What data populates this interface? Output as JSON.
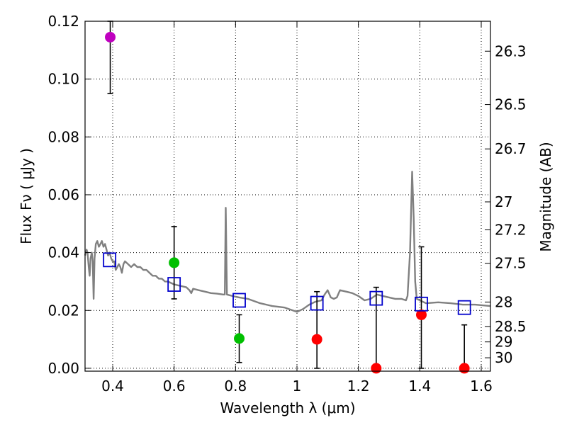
{
  "chart_data": {
    "type": "scatter",
    "xlabel": "Wavelength  λ (μm)",
    "ylabel": "Flux  Fν  ( μJy )",
    "ylabel_right": "Magnitude (AB)",
    "xlim": [
      0.31,
      1.63
    ],
    "ylim": [
      -0.001,
      0.12
    ],
    "grid": true,
    "x_ticks": [
      0.4,
      0.6,
      0.8,
      1.0,
      1.2,
      1.4,
      1.6
    ],
    "x_tick_labels": [
      "0.4",
      "0.6",
      "0.8",
      "1",
      "1.2",
      "1.4",
      "1.6"
    ],
    "y_ticks": [
      0.0,
      0.02,
      0.04,
      0.06,
      0.08,
      0.1,
      0.12
    ],
    "y_tick_labels": [
      "0.00",
      "0.02",
      "0.04",
      "0.06",
      "0.08",
      "0.10",
      "0.12"
    ],
    "right_ticks": [
      {
        "label": "26.3",
        "mag": 26.3
      },
      {
        "label": "26.5",
        "mag": 26.5
      },
      {
        "label": "26.7",
        "mag": 26.7
      },
      {
        "label": "27",
        "mag": 27.0
      },
      {
        "label": "27.2",
        "mag": 27.2
      },
      {
        "label": "27.5",
        "mag": 27.5
      },
      {
        "label": "28",
        "mag": 28.0
      },
      {
        "label": "28.5",
        "mag": 28.5
      },
      {
        "label": "29",
        "mag": 29.0
      },
      {
        "label": "30",
        "mag": 30.0
      }
    ],
    "observations": [
      {
        "x": 0.392,
        "y": 0.1145,
        "err_low": 0.095,
        "err_high": 0.12,
        "color": "#bf00bf"
      },
      {
        "x": 0.6,
        "y": 0.0365,
        "err_low": 0.024,
        "err_high": 0.049,
        "color": "#00bf00"
      },
      {
        "x": 0.812,
        "y": 0.0103,
        "err_low": 0.002,
        "err_high": 0.0185,
        "color": "#00bf00"
      },
      {
        "x": 1.065,
        "y": 0.01,
        "err_low": 0.0,
        "err_high": 0.0265,
        "color": "#ff0000"
      },
      {
        "x": 1.258,
        "y": 0.0,
        "err_low": 0.0,
        "err_high": 0.028,
        "color": "#ff0000"
      },
      {
        "x": 1.405,
        "y": 0.0185,
        "err_low": 0.0,
        "err_high": 0.042,
        "color": "#ff0000"
      },
      {
        "x": 1.545,
        "y": 0.0,
        "err_low": 0.0,
        "err_high": 0.015,
        "color": "#ff0000"
      }
    ],
    "model_photometry": [
      {
        "x": 0.39,
        "y": 0.0375
      },
      {
        "x": 0.6,
        "y": 0.029
      },
      {
        "x": 0.812,
        "y": 0.0235
      },
      {
        "x": 1.065,
        "y": 0.0225
      },
      {
        "x": 1.258,
        "y": 0.0242
      },
      {
        "x": 1.405,
        "y": 0.0222
      },
      {
        "x": 1.545,
        "y": 0.021
      }
    ],
    "model_sed": [
      [
        0.31,
        0.039
      ],
      [
        0.315,
        0.041
      ],
      [
        0.318,
        0.04
      ],
      [
        0.322,
        0.035
      ],
      [
        0.325,
        0.032
      ],
      [
        0.328,
        0.038
      ],
      [
        0.332,
        0.04
      ],
      [
        0.335,
        0.037
      ],
      [
        0.338,
        0.024
      ],
      [
        0.341,
        0.038
      ],
      [
        0.345,
        0.043
      ],
      [
        0.35,
        0.044
      ],
      [
        0.355,
        0.042
      ],
      [
        0.36,
        0.043
      ],
      [
        0.365,
        0.044
      ],
      [
        0.37,
        0.042
      ],
      [
        0.375,
        0.043
      ],
      [
        0.38,
        0.041
      ],
      [
        0.385,
        0.039
      ],
      [
        0.39,
        0.04
      ],
      [
        0.395,
        0.038
      ],
      [
        0.4,
        0.037
      ],
      [
        0.405,
        0.037
      ],
      [
        0.41,
        0.034
      ],
      [
        0.415,
        0.035
      ],
      [
        0.42,
        0.036
      ],
      [
        0.425,
        0.035
      ],
      [
        0.43,
        0.033
      ],
      [
        0.435,
        0.036
      ],
      [
        0.44,
        0.037
      ],
      [
        0.45,
        0.036
      ],
      [
        0.46,
        0.035
      ],
      [
        0.47,
        0.036
      ],
      [
        0.48,
        0.035
      ],
      [
        0.49,
        0.035
      ],
      [
        0.5,
        0.034
      ],
      [
        0.51,
        0.034
      ],
      [
        0.52,
        0.033
      ],
      [
        0.53,
        0.032
      ],
      [
        0.54,
        0.032
      ],
      [
        0.55,
        0.031
      ],
      [
        0.56,
        0.031
      ],
      [
        0.57,
        0.03
      ],
      [
        0.58,
        0.03
      ],
      [
        0.59,
        0.0295
      ],
      [
        0.6,
        0.029
      ],
      [
        0.62,
        0.0285
      ],
      [
        0.64,
        0.028
      ],
      [
        0.65,
        0.027
      ],
      [
        0.656,
        0.026
      ],
      [
        0.662,
        0.0275
      ],
      [
        0.68,
        0.027
      ],
      [
        0.7,
        0.0265
      ],
      [
        0.72,
        0.026
      ],
      [
        0.74,
        0.0258
      ],
      [
        0.76,
        0.0255
      ],
      [
        0.765,
        0.0255
      ],
      [
        0.768,
        0.0555
      ],
      [
        0.772,
        0.0255
      ],
      [
        0.79,
        0.025
      ],
      [
        0.812,
        0.0245
      ],
      [
        0.84,
        0.024
      ],
      [
        0.88,
        0.0225
      ],
      [
        0.92,
        0.0215
      ],
      [
        0.96,
        0.021
      ],
      [
        1.0,
        0.0195
      ],
      [
        1.02,
        0.0205
      ],
      [
        1.04,
        0.022
      ],
      [
        1.06,
        0.023
      ],
      [
        1.08,
        0.0235
      ],
      [
        1.09,
        0.0255
      ],
      [
        1.1,
        0.027
      ],
      [
        1.11,
        0.0245
      ],
      [
        1.12,
        0.024
      ],
      [
        1.13,
        0.0245
      ],
      [
        1.14,
        0.027
      ],
      [
        1.16,
        0.0265
      ],
      [
        1.18,
        0.026
      ],
      [
        1.2,
        0.025
      ],
      [
        1.22,
        0.0235
      ],
      [
        1.24,
        0.024
      ],
      [
        1.26,
        0.0255
      ],
      [
        1.28,
        0.025
      ],
      [
        1.3,
        0.0245
      ],
      [
        1.32,
        0.024
      ],
      [
        1.34,
        0.024
      ],
      [
        1.355,
        0.0235
      ],
      [
        1.36,
        0.025
      ],
      [
        1.368,
        0.04
      ],
      [
        1.375,
        0.068
      ],
      [
        1.38,
        0.052
      ],
      [
        1.385,
        0.03
      ],
      [
        1.39,
        0.024
      ],
      [
        1.42,
        0.0225
      ],
      [
        1.46,
        0.0228
      ],
      [
        1.5,
        0.0225
      ],
      [
        1.54,
        0.022
      ],
      [
        1.58,
        0.022
      ],
      [
        1.63,
        0.0215
      ]
    ]
  }
}
